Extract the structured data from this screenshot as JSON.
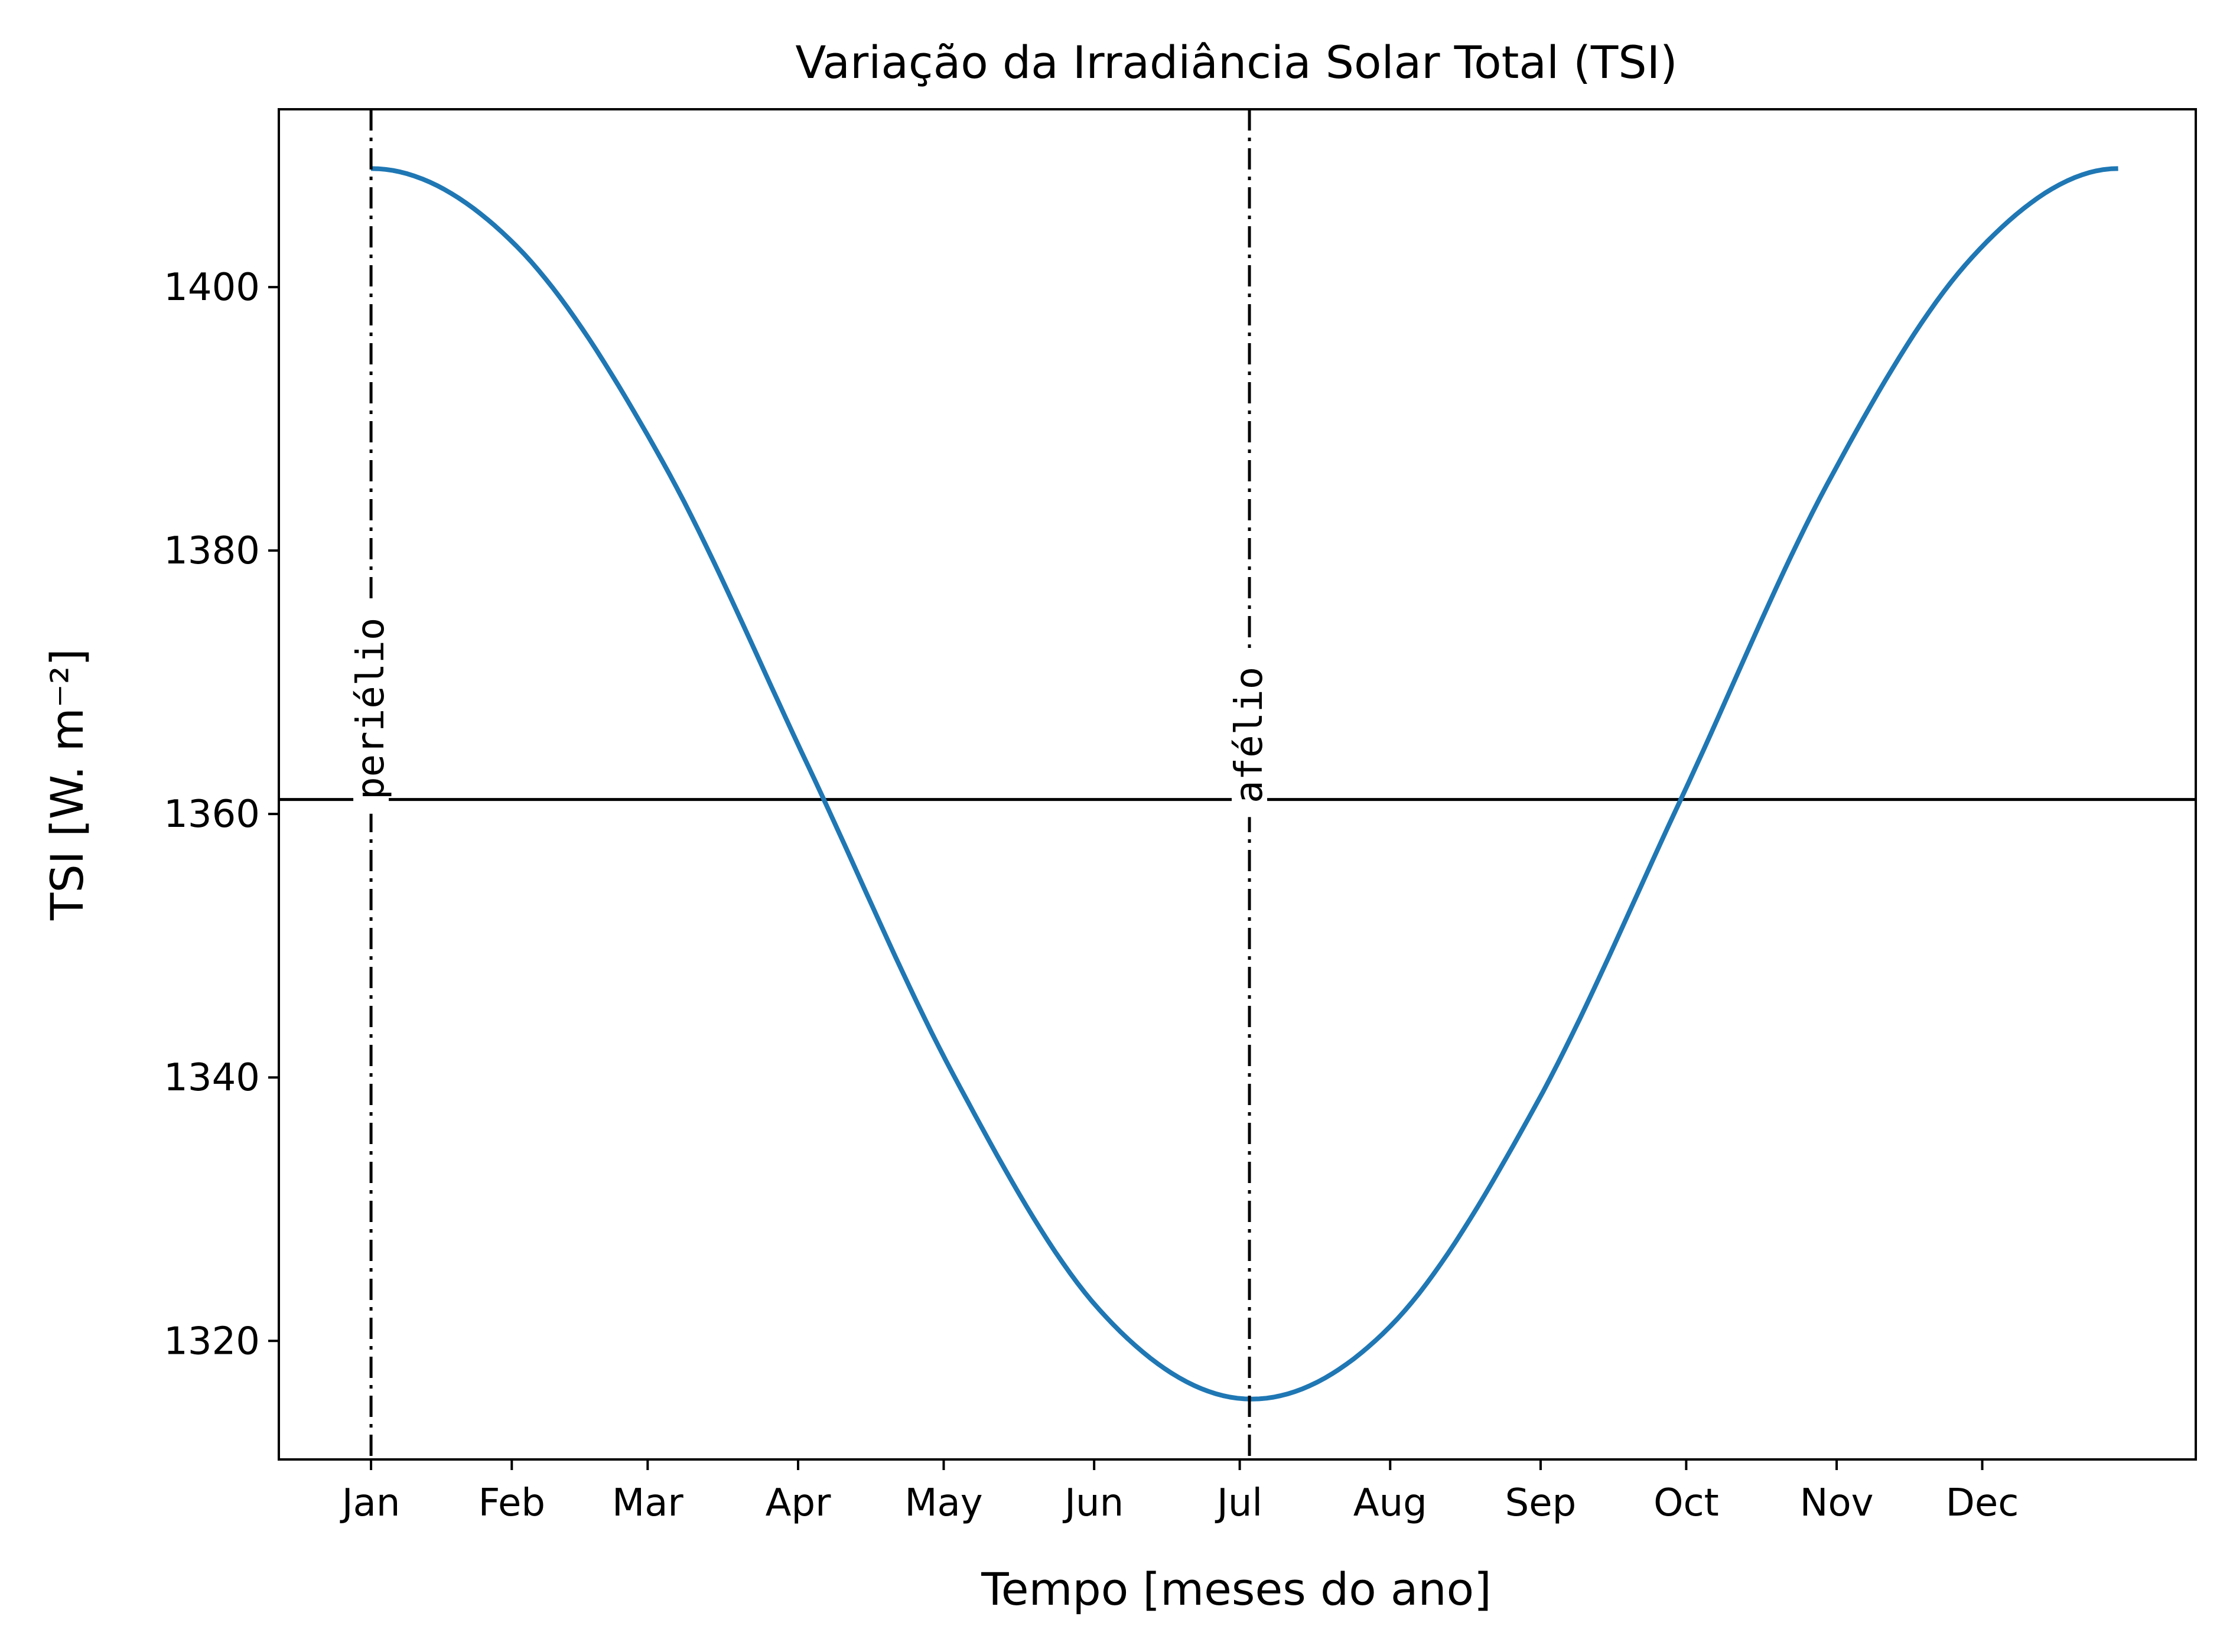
{
  "chart_data": {
    "type": "line",
    "title": "Variação da Irradiância Solar Total (TSI)",
    "xlabel": "Tempo [meses do ano]",
    "ylabel": "TSI [W. m⁻²]",
    "x_ticks": [
      {
        "label": "Jan",
        "day": 3
      },
      {
        "label": "Feb",
        "day": 32
      },
      {
        "label": "Mar",
        "day": 60
      },
      {
        "label": "Apr",
        "day": 91
      },
      {
        "label": "May",
        "day": 121
      },
      {
        "label": "Jun",
        "day": 152
      },
      {
        "label": "Jul",
        "day": 182
      },
      {
        "label": "Aug",
        "day": 213
      },
      {
        "label": "Sep",
        "day": 244
      },
      {
        "label": "Oct",
        "day": 274
      },
      {
        "label": "Nov",
        "day": 305
      },
      {
        "label": "Dec",
        "day": 335
      }
    ],
    "xlim": [
      -16,
      379
    ],
    "ylim": [
      1311,
      1413.5
    ],
    "y_ticks": [
      1320,
      1340,
      1360,
      1380,
      1400
    ],
    "series": [
      {
        "color": "#1f77b4",
        "x": [
          3,
          33,
          63,
          93,
          123,
          153,
          183,
          213,
          243,
          273,
          303,
          333,
          363
        ],
        "values": [
          1409,
          1403.1,
          1386.8,
          1363.7,
          1340.2,
          1322.4,
          1315.6,
          1321.1,
          1337.9,
          1361.2,
          1385,
          1402.3,
          1409
        ]
      }
    ],
    "reference_line": {
      "y": 1361.1,
      "color": "#000000"
    },
    "vertical_lines": [
      {
        "x": 3,
        "label": "periélio",
        "label_y": 1368
      },
      {
        "x": 184,
        "label": "afélio",
        "label_y": 1366
      }
    ],
    "grid": false,
    "legend": "none"
  }
}
